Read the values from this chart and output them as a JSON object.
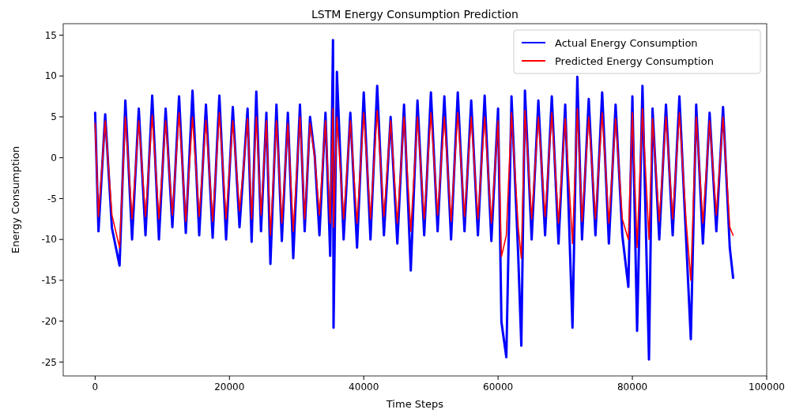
{
  "chart_data": {
    "type": "line",
    "title": "LSTM Energy Consumption Prediction",
    "xlabel": "Time Steps",
    "ylabel": "Energy Consumption",
    "x": [
      0,
      500,
      1500,
      2500,
      3640,
      4500,
      5500,
      6500,
      7500,
      8500,
      9500,
      10500,
      11500,
      12500,
      13500,
      14500,
      15500,
      16500,
      17500,
      18500,
      19500,
      20500,
      21500,
      22170,
      22700,
      23300,
      24000,
      24700,
      25500,
      26100,
      27000,
      27800,
      28700,
      29500,
      30500,
      31200,
      32000,
      32700,
      33400,
      34300,
      35000,
      35420,
      35500,
      36000,
      37000,
      38000,
      39000,
      40000,
      41000,
      42000,
      43000,
      44000,
      45000,
      46000,
      47000,
      48000,
      49000,
      50000,
      51000,
      52000,
      53000,
      54000,
      55000,
      56000,
      57000,
      58000,
      59000,
      60000,
      60500,
      61230,
      62000,
      63000,
      63460,
      64000,
      65000,
      66000,
      67000,
      68000,
      69000,
      70000,
      71080,
      71800,
      72500,
      73500,
      74500,
      75500,
      76500,
      77500,
      78500,
      79400,
      80000,
      80700,
      81500,
      82470,
      83000,
      84000,
      85000,
      86000,
      87000,
      88000,
      88700,
      89500,
      90500,
      91500,
      92500,
      93500,
      94500,
      95000
    ],
    "series": [
      {
        "name": "Actual Energy Consumption",
        "color": "#0000ff",
        "values": [
          5.5,
          -9,
          5.3,
          -8.6,
          -13.2,
          7,
          -10,
          6,
          -9.5,
          7.6,
          -10,
          6,
          -8.5,
          7.5,
          -9.2,
          8.2,
          -9.5,
          6.5,
          -9.8,
          7.6,
          -10,
          6.2,
          -8.5,
          -0.5,
          6,
          -10.3,
          8.1,
          -9,
          5.5,
          -13,
          6.5,
          -10.2,
          5.5,
          -12.3,
          6.5,
          -9,
          5,
          0.2,
          -9.5,
          5.5,
          -12,
          14.4,
          -20.8,
          10.5,
          -10,
          5.5,
          -11,
          8,
          -10,
          8.8,
          -9.5,
          5,
          -10.5,
          6.5,
          -13.8,
          7,
          -9.5,
          8,
          -9,
          7.5,
          -10,
          8,
          -9,
          7,
          -9.5,
          7.6,
          -10.2,
          6,
          -20.1,
          -24.4,
          7.5,
          -12,
          -23,
          8.2,
          -10,
          7,
          -9.5,
          7.5,
          -10.5,
          6.5,
          -20.8,
          9.9,
          -10,
          7.2,
          -9.5,
          8,
          -10.5,
          6.5,
          -9.5,
          -15.8,
          7.5,
          -21.2,
          8.8,
          -24.7,
          6,
          -10,
          6.5,
          -9.5,
          7.5,
          -10,
          -22.2,
          6.5,
          -10.5,
          5.5,
          -9,
          6.2,
          -11,
          -14.7
        ]
      },
      {
        "name": "Predicted Energy Consumption",
        "color": "#ff0000",
        "values": [
          4.2,
          -7.2,
          4.5,
          -7,
          -11,
          5,
          -7.5,
          4.5,
          -7.2,
          5.2,
          -7.5,
          4.5,
          -7,
          5.5,
          -7.8,
          5,
          -7.2,
          4.6,
          -7.8,
          5.5,
          -7.5,
          4.5,
          -6.5,
          -0.5,
          4.8,
          -7.5,
          5,
          -7,
          4.5,
          -9.5,
          4.5,
          -8,
          4.2,
          -9,
          5,
          -7.5,
          4.2,
          0,
          -7,
          4.5,
          -8,
          6,
          -8.5,
          5,
          -7.5,
          4.5,
          -8,
          5.5,
          -7.5,
          5.8,
          -7.2,
          4.5,
          -8,
          5,
          -9,
          5,
          -7.5,
          5.5,
          -7,
          5,
          -7.8,
          5.5,
          -7.2,
          5,
          -7.5,
          5,
          -8,
          4.5,
          -12.1,
          -9.5,
          5.5,
          -8.5,
          -12.3,
          5.8,
          -7.5,
          5,
          -7.2,
          5.5,
          -8,
          4.8,
          -10.5,
          6,
          -7.8,
          5,
          -7.5,
          5.5,
          -8,
          4.8,
          -7.5,
          -10,
          5.5,
          -11,
          6,
          -10,
          4.8,
          -7.8,
          5,
          -7.5,
          5.5,
          -7.8,
          -15,
          5,
          -8,
          4.5,
          -7,
          5,
          -8.5,
          -9.5
        ]
      }
    ],
    "xlim": [
      -4750,
      100000
    ],
    "xticks": [
      0,
      20000,
      40000,
      60000,
      80000,
      100000
    ],
    "ylim": [
      -26.7,
      16.4
    ],
    "yticks": [
      -25,
      -20,
      -15,
      -10,
      -5,
      0,
      5,
      10,
      15
    ],
    "legend": "top right",
    "grid": false,
    "marker": "none",
    "line_style": "solid"
  }
}
